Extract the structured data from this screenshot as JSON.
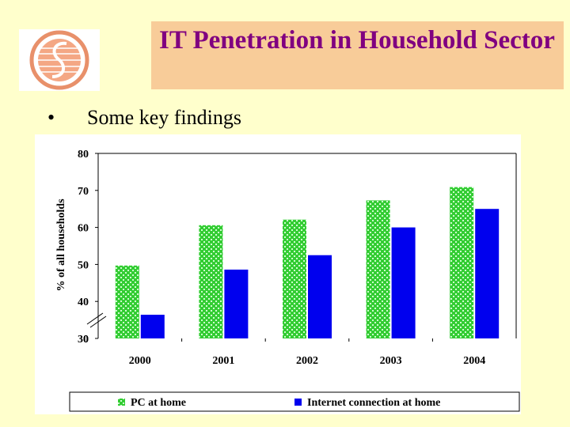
{
  "slide": {
    "title": "IT Penetration in Household Sector",
    "bullet": "•",
    "subtitle": "Some key findings"
  },
  "colors": {
    "background": "#ffffcc",
    "title_box": "#f8cc99",
    "title_text": "#800080",
    "pc_series": "#33cc33",
    "internet_series": "#0000ee"
  },
  "chart_data": {
    "type": "bar",
    "title": "",
    "xlabel": "",
    "ylabel": "% of all households",
    "categories": [
      "2000",
      "2001",
      "2002",
      "2003",
      "2004"
    ],
    "y_ticks": [
      "0",
      "30",
      "40",
      "50",
      "60",
      "70",
      "80"
    ],
    "ylim": [
      30,
      80
    ],
    "axis_break": true,
    "grid": false,
    "legend_position": "bottom",
    "series": [
      {
        "name": "PC at home",
        "values": [
          49.7,
          60.6,
          62.1,
          67.3,
          70.9
        ]
      },
      {
        "name": "Internet connection at home",
        "values": [
          36.4,
          48.6,
          52.5,
          60.0,
          65.0
        ]
      }
    ]
  }
}
